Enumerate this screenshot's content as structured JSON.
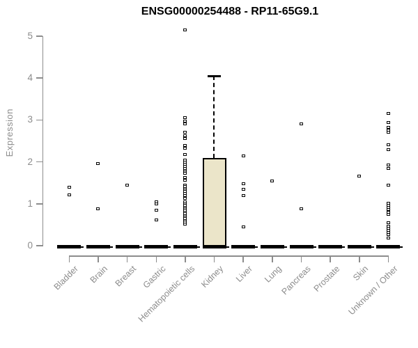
{
  "chart_data": {
    "type": "boxplot",
    "title": "ENSG00000254488 - RP11-65G9.1",
    "xlabel": "",
    "ylabel": "Expression",
    "ylim": [
      0,
      5.2
    ],
    "yticks": [
      0,
      1,
      2,
      3,
      4,
      5
    ],
    "grid": false,
    "legend": "none",
    "categories": [
      "Bladder",
      "Brain",
      "Breast",
      "Gastric",
      "Hematopoietic cells",
      "Kidney",
      "Liver",
      "Lung",
      "Pancreas",
      "Prostate",
      "Skin",
      "Unknown / Other"
    ],
    "colors": {
      "box_fill": "#ebe5c9",
      "box_border": "#000000",
      "axis": "#8c8c8c",
      "axis_text": "#8c8c8c",
      "points": "#000000",
      "background": "#ffffff"
    },
    "series": [
      {
        "category": "Bladder",
        "box": {
          "q1": 0,
          "median": 0,
          "q3": 0,
          "whisker_low": 0,
          "whisker_high": 0
        },
        "points": [
          1.4,
          1.22
        ]
      },
      {
        "category": "Brain",
        "box": {
          "q1": 0,
          "median": 0,
          "q3": 0,
          "whisker_low": 0,
          "whisker_high": 0
        },
        "points": [
          1.96,
          0.88
        ]
      },
      {
        "category": "Breast",
        "box": {
          "q1": 0,
          "median": 0,
          "q3": 0,
          "whisker_low": 0,
          "whisker_high": 0
        },
        "points": [
          1.45
        ]
      },
      {
        "category": "Gastric",
        "box": {
          "q1": 0,
          "median": 0,
          "q3": 0,
          "whisker_low": 0,
          "whisker_high": 0
        },
        "points": [
          1.05,
          1.0,
          0.85,
          0.62
        ]
      },
      {
        "category": "Hematopoietic cells",
        "box": {
          "q1": 0,
          "median": 0,
          "q3": 0,
          "whisker_low": 0,
          "whisker_high": 0
        },
        "points": [
          5.15,
          3.05,
          2.97,
          2.9,
          2.7,
          2.63,
          2.56,
          2.4,
          2.32,
          2.17,
          2.05,
          2.0,
          1.95,
          1.9,
          1.85,
          1.8,
          1.76,
          1.72,
          1.62,
          1.56,
          1.45,
          1.41,
          1.37,
          1.33,
          1.29,
          1.25,
          1.2,
          1.13,
          1.05,
          1.0,
          0.96,
          0.92,
          0.88,
          0.84,
          0.8,
          0.76,
          0.72,
          0.68,
          0.64,
          0.6,
          0.56,
          0.52
        ]
      },
      {
        "category": "Kidney",
        "box": {
          "q1": 0,
          "median": 0,
          "q3": 2.1,
          "whisker_low": 0,
          "whisker_high": 4.05
        },
        "points": []
      },
      {
        "category": "Liver",
        "box": {
          "q1": 0,
          "median": 0,
          "q3": 0,
          "whisker_low": 0,
          "whisker_high": 0
        },
        "points": [
          2.14,
          1.48,
          1.35,
          1.2,
          0.45
        ]
      },
      {
        "category": "Lung",
        "box": {
          "q1": 0,
          "median": 0,
          "q3": 0,
          "whisker_low": 0,
          "whisker_high": 0
        },
        "points": [
          1.55
        ]
      },
      {
        "category": "Pancreas",
        "box": {
          "q1": 0,
          "median": 0,
          "q3": 0,
          "whisker_low": 0,
          "whisker_high": 0
        },
        "points": [
          2.9,
          0.88
        ]
      },
      {
        "category": "Prostate",
        "box": {
          "q1": 0,
          "median": 0,
          "q3": 0,
          "whisker_low": 0,
          "whisker_high": 0
        },
        "points": []
      },
      {
        "category": "Skin",
        "box": {
          "q1": 0,
          "median": 0,
          "q3": 0,
          "whisker_low": 0,
          "whisker_high": 0
        },
        "points": [
          1.66
        ]
      },
      {
        "category": "Unknown / Other",
        "box": {
          "q1": 0,
          "median": 0,
          "q3": 0,
          "whisker_low": 0,
          "whisker_high": 0
        },
        "points": [
          3.16,
          2.94,
          2.82,
          2.75,
          2.7,
          2.41,
          2.29,
          1.93,
          1.84,
          1.45,
          1.02,
          0.97,
          0.92,
          0.87,
          0.8,
          0.74,
          0.55,
          0.46,
          0.41,
          0.36,
          0.31,
          0.26,
          0.18
        ]
      }
    ]
  }
}
